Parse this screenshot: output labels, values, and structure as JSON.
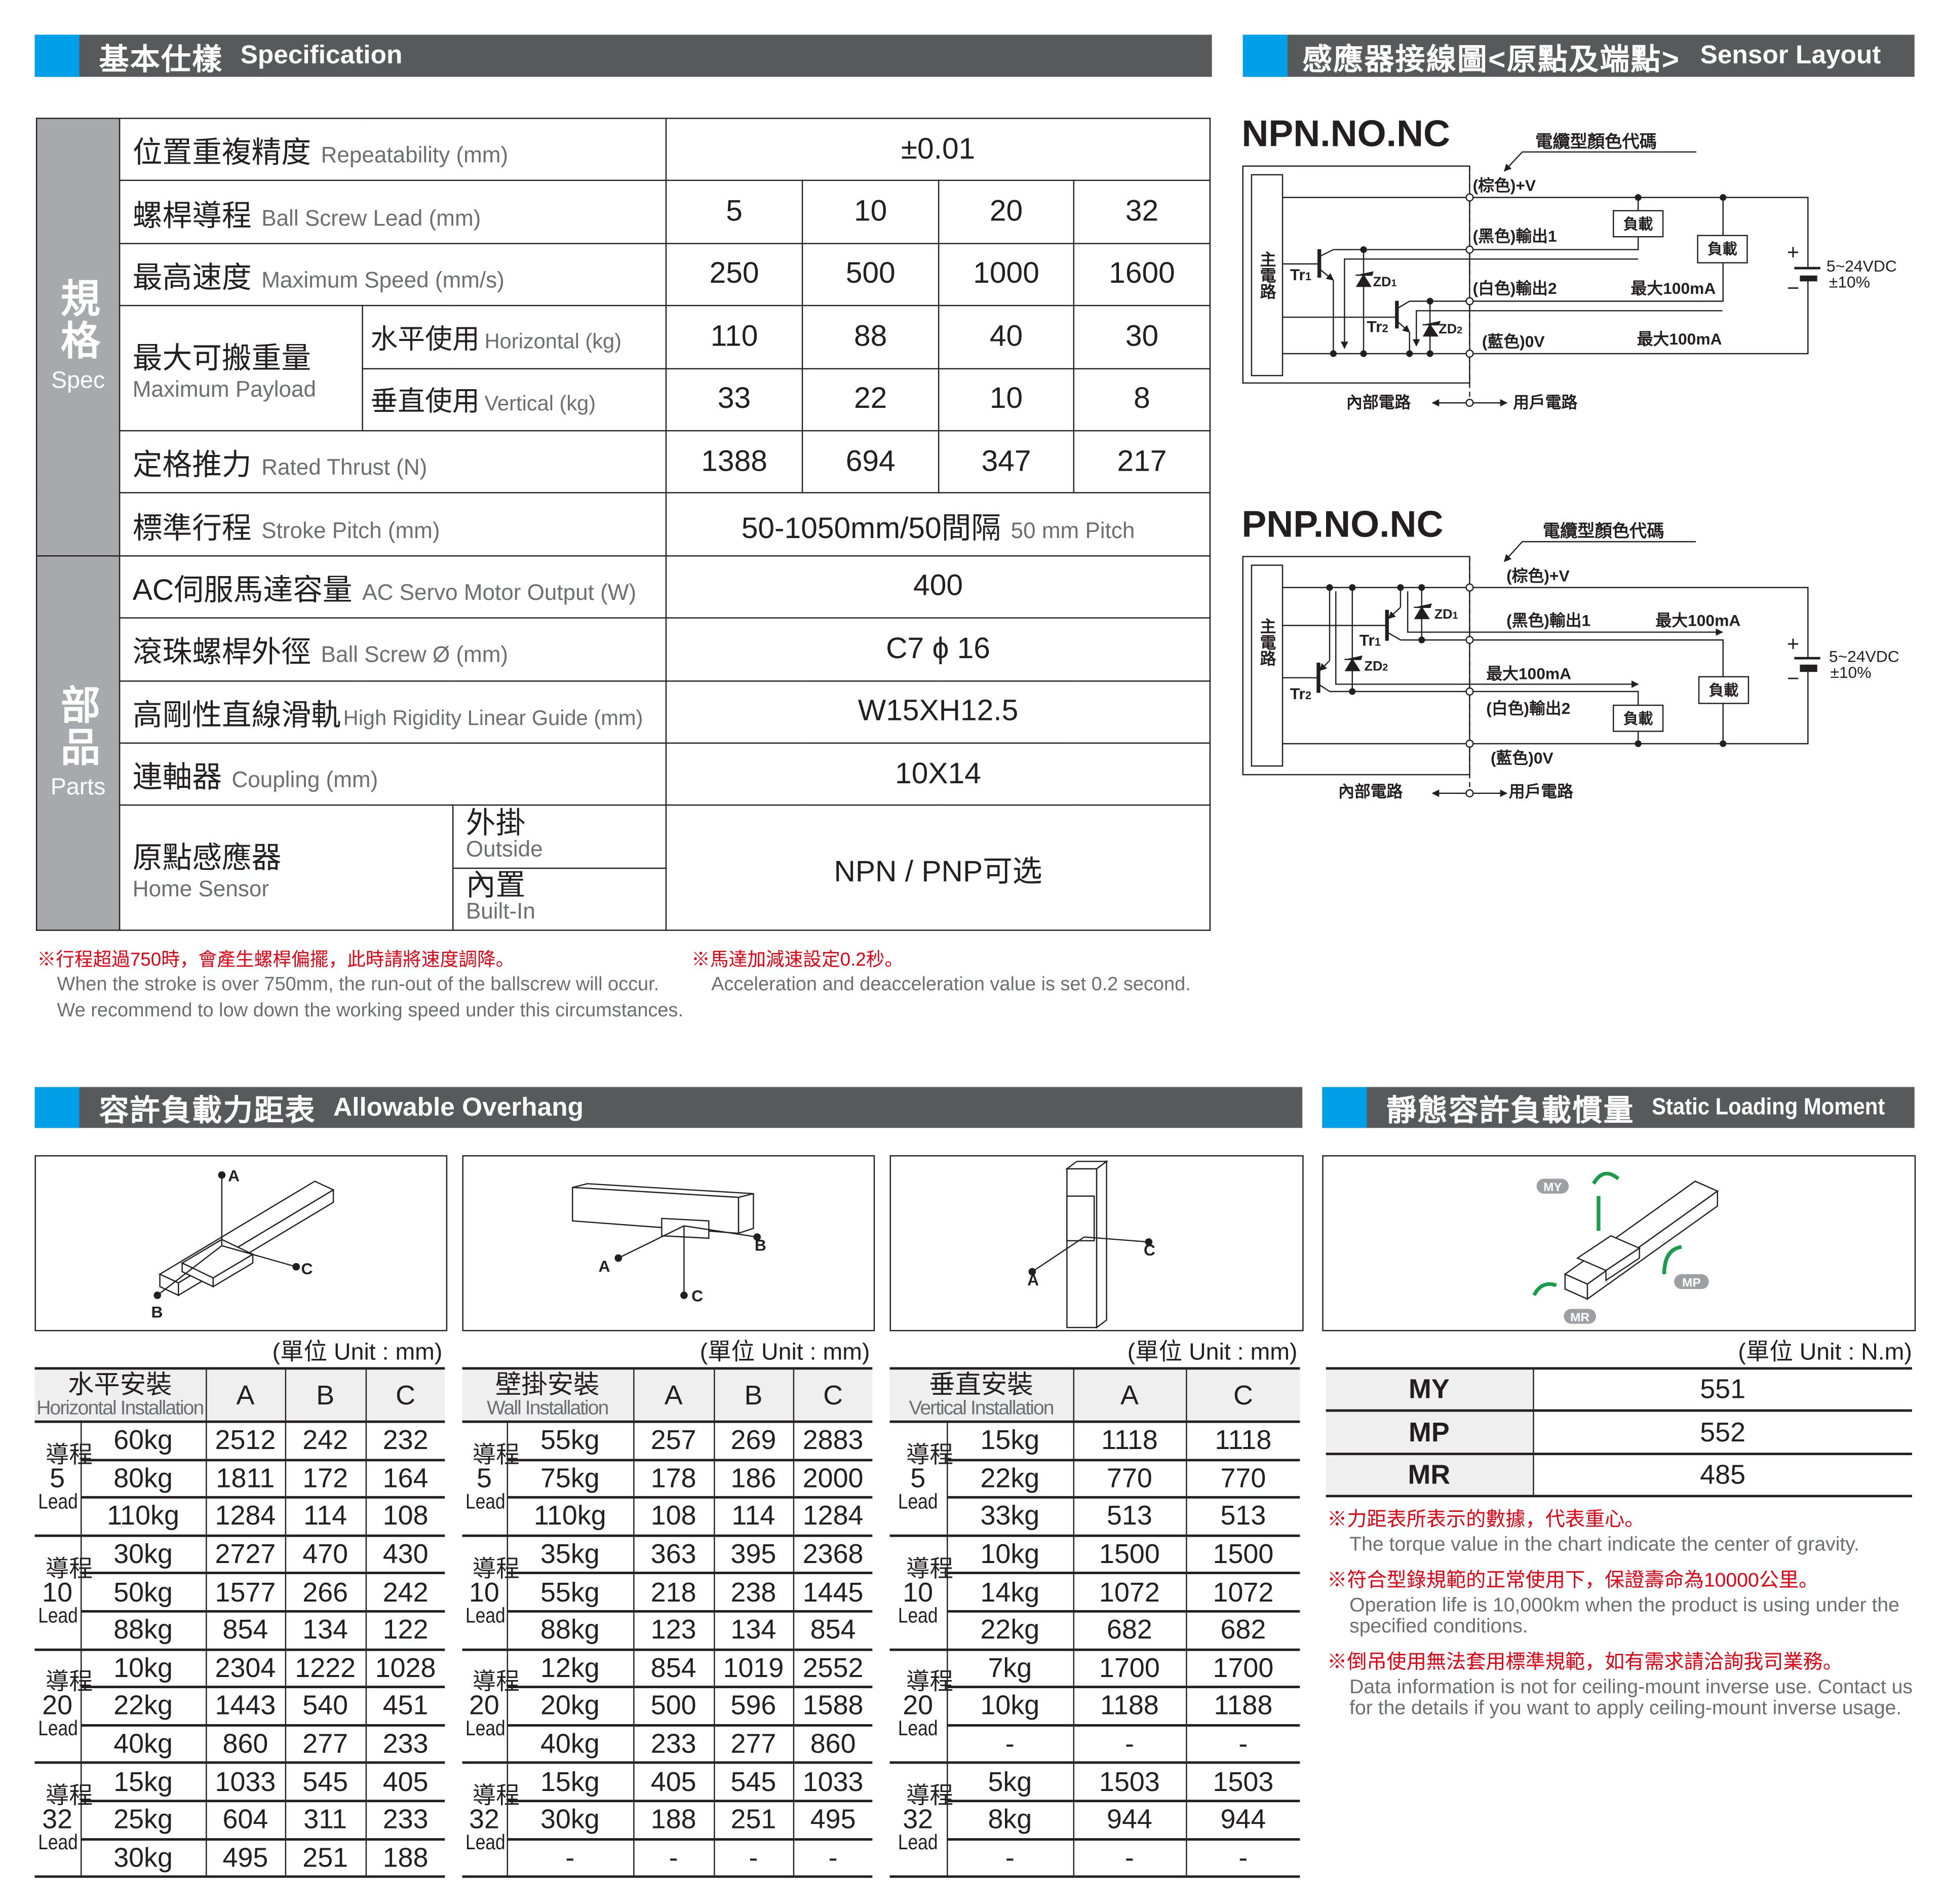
{
  "spec": {
    "title_zh": "基本仕樣",
    "title_en": "Specification",
    "group_spec": {
      "zh": "規格",
      "en": "Spec"
    },
    "group_parts": {
      "zh": "部品",
      "en": "Parts"
    },
    "repeatability": {
      "zh": "位置重複精度",
      "en": "Repeatability (mm)",
      "value": "±0.01"
    },
    "lead": {
      "zh": "螺桿導程",
      "en": "Ball Screw Lead (mm)",
      "values": [
        "5",
        "10",
        "20",
        "32"
      ]
    },
    "speed": {
      "zh": "最高速度",
      "en": "Maximum Speed (mm/s)",
      "values": [
        "250",
        "500",
        "1000",
        "1600"
      ]
    },
    "payload": {
      "zh": "最大可搬重量",
      "en": "Maximum Payload",
      "horizontal": {
        "zh": "水平使用",
        "en": "Horizontal (kg)",
        "values": [
          "110",
          "88",
          "40",
          "30"
        ]
      },
      "vertical": {
        "zh": "垂直使用",
        "en": "Vertical (kg)",
        "values": [
          "33",
          "22",
          "10",
          "8"
        ]
      }
    },
    "thrust": {
      "zh": "定格推力",
      "en": "Rated Thrust (N)",
      "values": [
        "1388",
        "694",
        "347",
        "217"
      ]
    },
    "stroke": {
      "zh": "標準行程",
      "en": "Stroke Pitch (mm)",
      "value": "50-1050mm/50間隔",
      "value_en": "50 mm Pitch"
    },
    "motor": {
      "zh": "AC伺服馬達容量",
      "en": "AC Servo Motor Output (W)",
      "value": "400"
    },
    "screw": {
      "zh": "滾珠螺桿外徑",
      "en": "Ball Screw Ø (mm)",
      "value": "C7 ϕ 16"
    },
    "guide": {
      "zh": "高剛性直線滑軌",
      "en": "High Rigidity Linear Guide (mm)",
      "value": "W15XH12.5"
    },
    "coupling": {
      "zh": "連軸器",
      "en": "Coupling (mm)",
      "value": "10X14"
    },
    "home": {
      "zh": "原點感應器",
      "en": "Home Sensor",
      "outside": {
        "zh": "外掛",
        "en": "Outside"
      },
      "builtin": {
        "zh": "內置",
        "en": "Built-In"
      },
      "value": "NPN / PNP可选"
    },
    "notes": {
      "left_zh": "※行程超過750時，會產生螺桿偏擺，此時請將速度調降。",
      "left_en1": "When the stroke is over 750mm, the run-out of the ballscrew will occur.",
      "left_en2": "We recommend to low down the working speed under this circumstances.",
      "right_zh": "※馬達加減速設定0.2秒。",
      "right_en": "Acceleration and deacceleration value is set 0.2 second."
    }
  },
  "sensor": {
    "title_zh": "感應器接線圖<原點及端點>",
    "title_en": "Sensor Layout",
    "npn_title": "NPN.NO.NC",
    "pnp_title": "PNP.NO.NC",
    "cable_code": "電纜型顏色代碼",
    "brown": "(棕色)+V",
    "black": "(黑色)輸出1",
    "white": "(白色)輸出2",
    "blue": "(藍色)0V",
    "max_current": "最大100mA",
    "load": "負載",
    "main_circuit": "主電路",
    "tr": "Tr",
    "zd": "ZD",
    "idx1": "1",
    "idx2": "2",
    "supply": "5~24VDC",
    "tolerance": "±10%",
    "plus": "+",
    "minus": "−",
    "internal": "內部電路",
    "user": "用戶電路"
  },
  "overhang": {
    "title_zh": "容許負載力距表",
    "title_en": "Allowable Overhang",
    "unit": "(單位 Unit : mm)",
    "lead_zh": "導程",
    "lead_en": "Lead",
    "labels": {
      "a": "A",
      "b": "B",
      "c": "C"
    },
    "tables": [
      {
        "zh": "水平安裝",
        "en": "Horizontal Installation",
        "cols": [
          "A",
          "B",
          "C"
        ],
        "groups": [
          {
            "lead": "5",
            "rows": [
              [
                "60kg",
                "2512",
                "242",
                "232"
              ],
              [
                "80kg",
                "1811",
                "172",
                "164"
              ],
              [
                "110kg",
                "1284",
                "114",
                "108"
              ]
            ]
          },
          {
            "lead": "10",
            "rows": [
              [
                "30kg",
                "2727",
                "470",
                "430"
              ],
              [
                "50kg",
                "1577",
                "266",
                "242"
              ],
              [
                "88kg",
                "854",
                "134",
                "122"
              ]
            ]
          },
          {
            "lead": "20",
            "rows": [
              [
                "10kg",
                "2304",
                "1222",
                "1028"
              ],
              [
                "22kg",
                "1443",
                "540",
                "451"
              ],
              [
                "40kg",
                "860",
                "277",
                "233"
              ]
            ]
          },
          {
            "lead": "32",
            "rows": [
              [
                "15kg",
                "1033",
                "545",
                "405"
              ],
              [
                "25kg",
                "604",
                "311",
                "233"
              ],
              [
                "30kg",
                "495",
                "251",
                "188"
              ]
            ]
          }
        ]
      },
      {
        "zh": "壁掛安裝",
        "en": "Wall Installation",
        "cols": [
          "A",
          "B",
          "C"
        ],
        "groups": [
          {
            "lead": "5",
            "rows": [
              [
                "55kg",
                "257",
                "269",
                "2883"
              ],
              [
                "75kg",
                "178",
                "186",
                "2000"
              ],
              [
                "110kg",
                "108",
                "114",
                "1284"
              ]
            ]
          },
          {
            "lead": "10",
            "rows": [
              [
                "35kg",
                "363",
                "395",
                "2368"
              ],
              [
                "55kg",
                "218",
                "238",
                "1445"
              ],
              [
                "88kg",
                "123",
                "134",
                "854"
              ]
            ]
          },
          {
            "lead": "20",
            "rows": [
              [
                "12kg",
                "854",
                "1019",
                "2552"
              ],
              [
                "20kg",
                "500",
                "596",
                "1588"
              ],
              [
                "40kg",
                "233",
                "277",
                "860"
              ]
            ]
          },
          {
            "lead": "32",
            "rows": [
              [
                "15kg",
                "405",
                "545",
                "1033"
              ],
              [
                "30kg",
                "188",
                "251",
                "495"
              ],
              [
                "-",
                "-",
                "-",
                "-"
              ]
            ]
          }
        ]
      },
      {
        "zh": "垂直安裝",
        "en": "Vertical Installation",
        "cols": [
          "A",
          "C"
        ],
        "groups": [
          {
            "lead": "5",
            "rows": [
              [
                "15kg",
                "1118",
                "1118"
              ],
              [
                "22kg",
                "770",
                "770"
              ],
              [
                "33kg",
                "513",
                "513"
              ]
            ]
          },
          {
            "lead": "10",
            "rows": [
              [
                "10kg",
                "1500",
                "1500"
              ],
              [
                "14kg",
                "1072",
                "1072"
              ],
              [
                "22kg",
                "682",
                "682"
              ]
            ]
          },
          {
            "lead": "20",
            "rows": [
              [
                "7kg",
                "1700",
                "1700"
              ],
              [
                "10kg",
                "1188",
                "1188"
              ],
              [
                "-",
                "-",
                "-"
              ]
            ]
          },
          {
            "lead": "32",
            "rows": [
              [
                "5kg",
                "1503",
                "1503"
              ],
              [
                "8kg",
                "944",
                "944"
              ],
              [
                "-",
                "-",
                "-"
              ]
            ]
          }
        ]
      }
    ]
  },
  "static": {
    "title_zh": "靜態容許負載慣量",
    "title_en": "Static Loading Moment",
    "unit": "(單位 Unit : N.m)",
    "rows": [
      [
        "MY",
        "551"
      ],
      [
        "MP",
        "552"
      ],
      [
        "MR",
        "485"
      ]
    ],
    "notes": [
      {
        "zh": "※力距表所表示的數據，代表重心。",
        "en": "The torque value in the chart indicate the center of gravity."
      },
      {
        "zh": "※符合型錄規範的正常使用下，保證壽命為10000公里。",
        "en": "Operation life is 10,000km when the product is using under the specified conditions."
      },
      {
        "zh": "※倒吊使用無法套用標準規範，如有需求請洽詢我司業務。",
        "en": "Data information is not for ceiling-mount inverse use. Contact us for the details if you want to apply ceiling-mount inverse usage."
      }
    ]
  },
  "colors": {
    "accent_blue": "#00a0e9",
    "header_grey": "#58595b",
    "note_red": "#e60012",
    "arrow_green": "#1a9c4a"
  }
}
